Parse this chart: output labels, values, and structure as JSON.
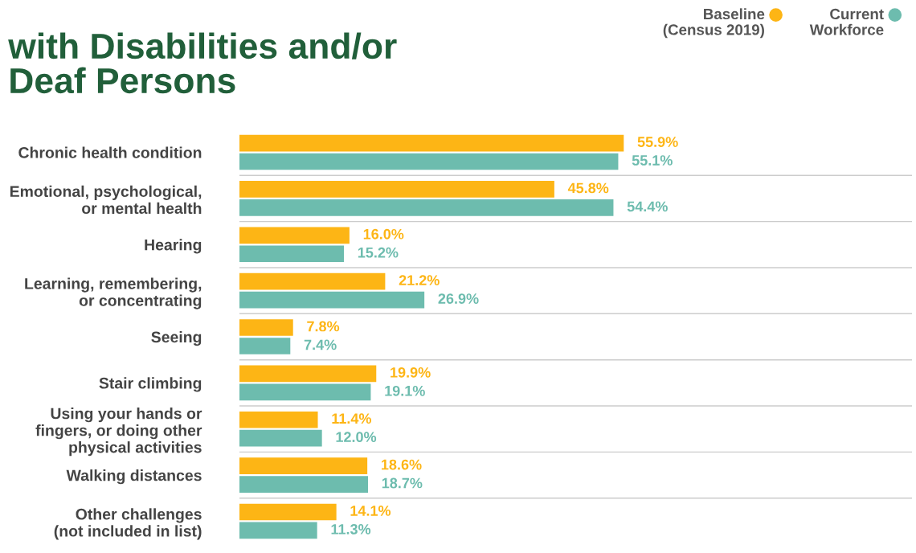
{
  "chart_data": {
    "type": "bar",
    "orientation": "horizontal",
    "title": "with Disabilities and/or\nDeaf Persons",
    "categories": [
      "Chronic health condition",
      "Emotional, psychological,\nor mental health",
      "Hearing",
      "Learning, remembering,\nor concentrating",
      "Seeing",
      "Stair climbing",
      "Using your hands or\nfingers, or doing other\nphysical activities",
      "Walking distances",
      "Other challenges\n(not included in list)"
    ],
    "series": [
      {
        "name": "Baseline\n(Census 2019)",
        "color": "#fdb515",
        "values": [
          55.9,
          45.8,
          16.0,
          21.2,
          7.8,
          19.9,
          11.4,
          18.6,
          14.1
        ],
        "value_labels": [
          "55.9%",
          "45.8%",
          "16.0%",
          "21.2%",
          "7.8%",
          "19.9%",
          "11.4%",
          "18.6%",
          "14.1%"
        ]
      },
      {
        "name": "Current\nWorkforce",
        "color": "#6dbcae",
        "values": [
          55.1,
          54.4,
          15.2,
          26.9,
          7.4,
          19.1,
          12.0,
          18.7,
          11.3
        ],
        "value_labels": [
          "55.1%",
          "54.4%",
          "15.2%",
          "26.9%",
          "7.4%",
          "19.1%",
          "12.0%",
          "18.7%",
          "11.3%"
        ]
      }
    ],
    "legend": "top right",
    "tick_labels": "y"
  }
}
